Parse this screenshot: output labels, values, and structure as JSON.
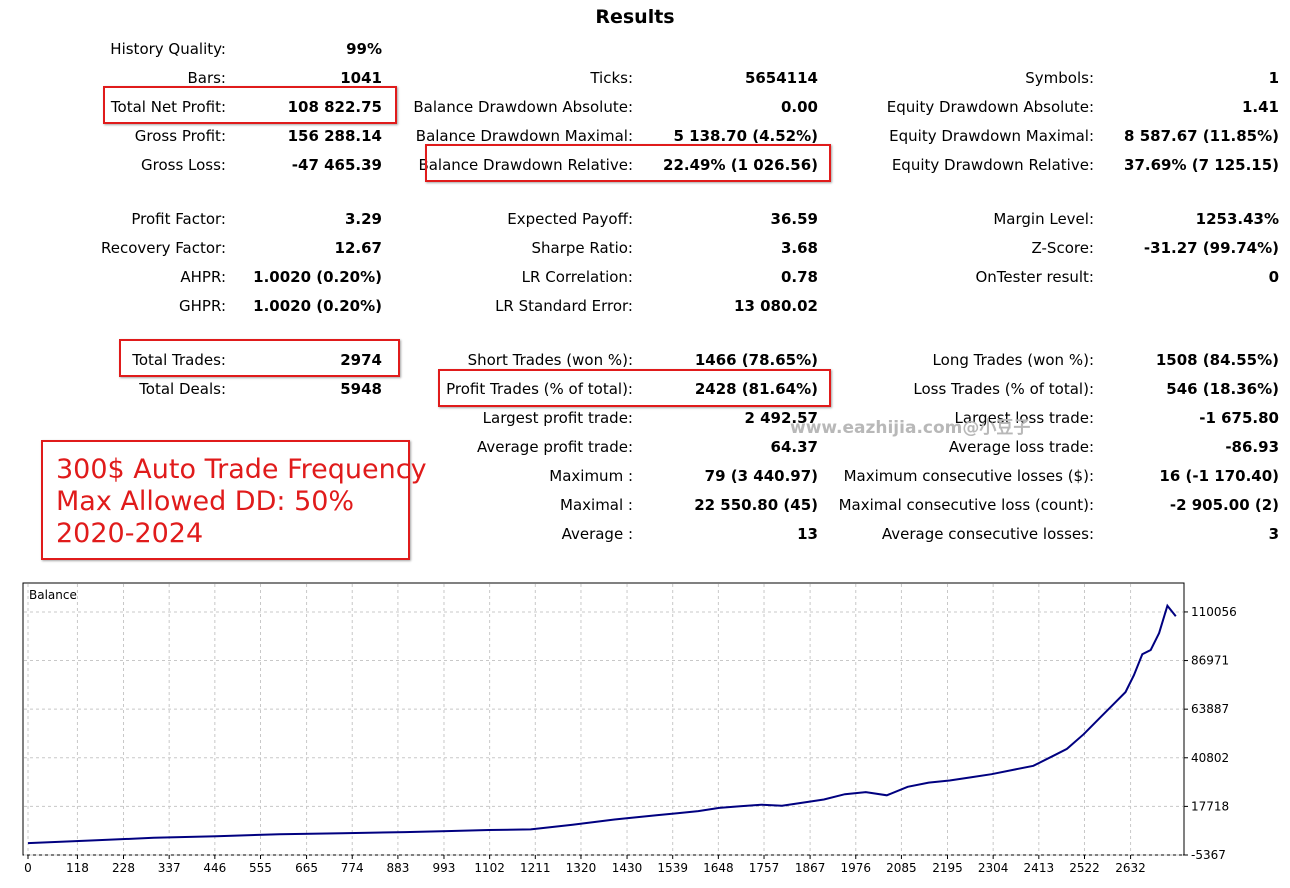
{
  "header": {
    "title": "Results"
  },
  "rows": [
    {
      "y": 38,
      "c1": [
        "History Quality:",
        "99%"
      ],
      "c2": null,
      "c3": null
    },
    {
      "y": 67,
      "c1": [
        "Bars:",
        "1041"
      ],
      "c2": [
        "Ticks:",
        "5654114"
      ],
      "c3": [
        "Symbols:",
        "1"
      ]
    },
    {
      "y": 96,
      "c1": [
        "Total Net Profit:",
        "108 822.75"
      ],
      "c2": [
        "Balance Drawdown Absolute:",
        "0.00"
      ],
      "c3": [
        "Equity Drawdown Absolute:",
        "1.41"
      ]
    },
    {
      "y": 125,
      "c1": [
        "Gross Profit:",
        "156 288.14"
      ],
      "c2": [
        "Balance Drawdown Maximal:",
        "5 138.70 (4.52%)"
      ],
      "c3": [
        "Equity Drawdown Maximal:",
        "8 587.67 (11.85%)"
      ]
    },
    {
      "y": 154,
      "c1": [
        "Gross Loss:",
        "-47 465.39"
      ],
      "c2": [
        "Balance Drawdown Relative:",
        "22.49% (1 026.56)"
      ],
      "c3": [
        "Equity Drawdown Relative:",
        "37.69% (7 125.15)"
      ]
    },
    {
      "y": 208,
      "c1": [
        "Profit Factor:",
        "3.29"
      ],
      "c2": [
        "Expected Payoff:",
        "36.59"
      ],
      "c3": [
        "Margin Level:",
        "1253.43%"
      ]
    },
    {
      "y": 237,
      "c1": [
        "Recovery Factor:",
        "12.67"
      ],
      "c2": [
        "Sharpe Ratio:",
        "3.68"
      ],
      "c3": [
        "Z-Score:",
        "-31.27 (99.74%)"
      ]
    },
    {
      "y": 266,
      "c1": [
        "AHPR:",
        "1.0020 (0.20%)"
      ],
      "c2": [
        "LR Correlation:",
        "0.78"
      ],
      "c3": [
        "OnTester result:",
        "0"
      ]
    },
    {
      "y": 295,
      "c1": [
        "GHPR:",
        "1.0020 (0.20%)"
      ],
      "c2": [
        "LR Standard Error:",
        "13 080.02"
      ],
      "c3": null
    },
    {
      "y": 349,
      "c1": [
        "Total Trades:",
        "2974"
      ],
      "c2": [
        "Short Trades (won %):",
        "1466 (78.65%)"
      ],
      "c3": [
        "Long Trades (won %):",
        "1508 (84.55%)"
      ]
    },
    {
      "y": 378,
      "c1": [
        "Total Deals:",
        "5948"
      ],
      "c2": [
        "Profit Trades (% of total):",
        "2428 (81.64%)"
      ],
      "c3": [
        "Loss Trades (% of total):",
        "546 (18.36%)"
      ]
    },
    {
      "y": 407,
      "c1": null,
      "c2": [
        "Largest profit trade:",
        "2 492.57"
      ],
      "c3": [
        "Largest loss trade:",
        "-1 675.80"
      ]
    },
    {
      "y": 436,
      "c1": null,
      "c2": [
        "Average profit trade:",
        "64.37"
      ],
      "c3": [
        "Average loss trade:",
        "-86.93"
      ]
    },
    {
      "y": 465,
      "c1": null,
      "c2": [
        "Maximum :",
        "79 (3 440.97)"
      ],
      "c3": [
        "Maximum consecutive losses ($):",
        "16 (-1 170.40)"
      ]
    },
    {
      "y": 494,
      "c1": null,
      "c2": [
        "Maximal :",
        "22 550.80 (45)"
      ],
      "c3": [
        "Maximal consecutive loss (count):",
        "-2 905.00 (2)"
      ]
    },
    {
      "y": 523,
      "c1": null,
      "c2": [
        "Average :",
        "13"
      ],
      "c3": [
        "Average consecutive losses:",
        "3"
      ]
    }
  ],
  "highlight_color": "#e01b1b",
  "annotation": {
    "lines": [
      "300$ Auto Trade Frequency",
      "Max Allowed DD: 50%",
      "2020-2024"
    ]
  },
  "watermark": "www.eazhijia.com@小豆子",
  "chart_data": {
    "type": "line",
    "title": "Balance",
    "x_ticks": [
      0,
      118,
      228,
      337,
      446,
      555,
      665,
      774,
      883,
      993,
      1102,
      1211,
      1320,
      1430,
      1539,
      1648,
      1757,
      1867,
      1976,
      2085,
      2195,
      2304,
      2413,
      2522,
      2632
    ],
    "y_ticks": [
      -5367,
      17718,
      40802,
      63887,
      86971,
      110056
    ],
    "xlim": [
      0,
      2750
    ],
    "ylim": [
      -5367,
      120000
    ],
    "line_color": "#000080",
    "series": [
      {
        "x": [
          0,
          150,
          300,
          450,
          600,
          750,
          900,
          1000,
          1100,
          1200,
          1300,
          1400,
          1450,
          1500,
          1550,
          1600,
          1650,
          1700,
          1750,
          1800,
          1850,
          1900,
          1950,
          2000,
          2050,
          2100,
          2150,
          2200,
          2250,
          2300,
          2350,
          2400,
          2450,
          2480,
          2520,
          2560,
          2590,
          2620,
          2640,
          2660,
          2680,
          2700,
          2720,
          2740
        ],
        "y": [
          300,
          1500,
          2800,
          3500,
          4500,
          5000,
          5500,
          6000,
          6500,
          6800,
          9000,
          11500,
          12500,
          13500,
          14500,
          15500,
          17000,
          17800,
          18500,
          18000,
          19500,
          21000,
          23500,
          24500,
          23000,
          27000,
          29000,
          30000,
          31500,
          33000,
          35000,
          37000,
          42000,
          45000,
          52000,
          60000,
          66000,
          72000,
          80000,
          90000,
          92000,
          100000,
          113000,
          108000
        ]
      }
    ]
  }
}
